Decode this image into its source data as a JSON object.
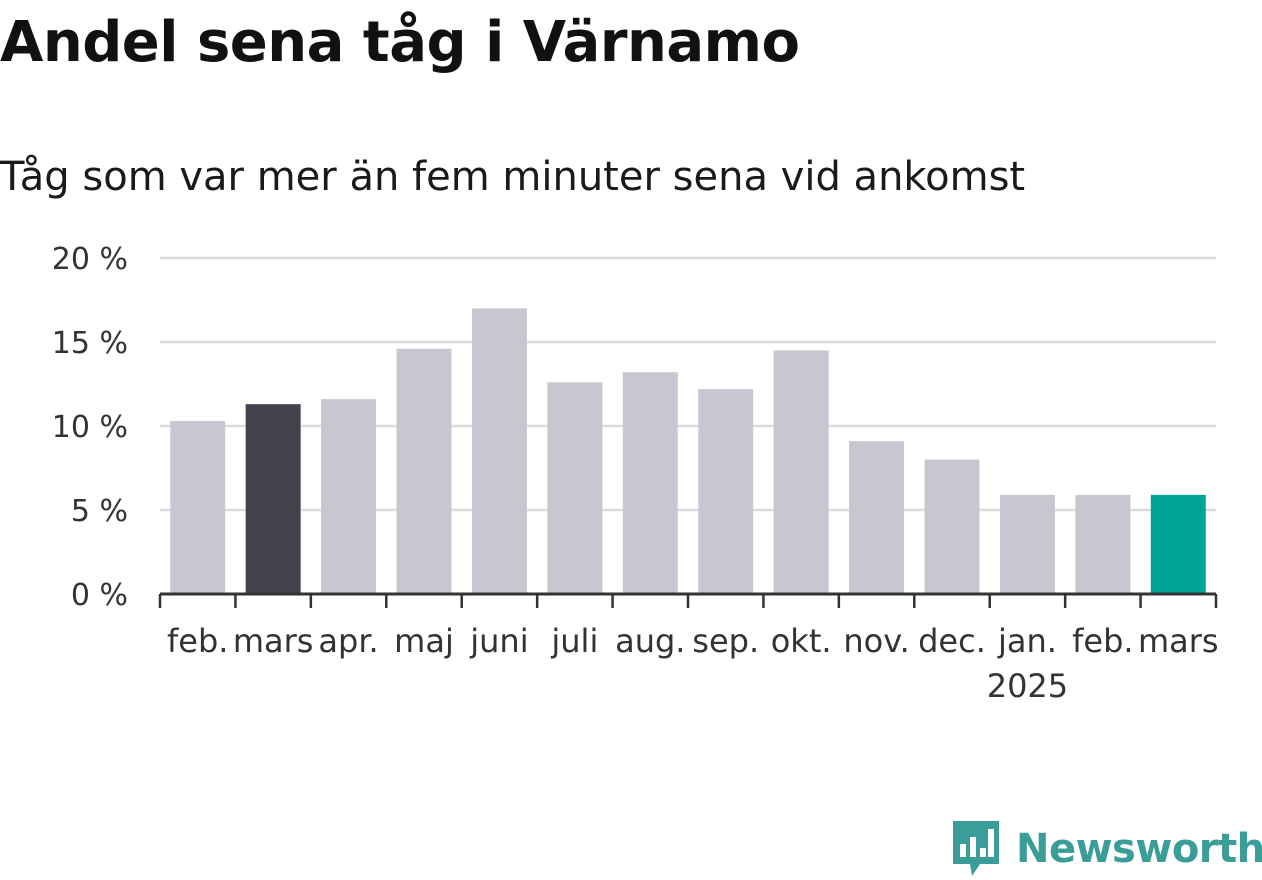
{
  "title": "Andel sena tåg i Värnamo",
  "subtitle": "Tåg som var mer än fem minuter sena vid ankomst",
  "brand": {
    "name": "Newsworthy",
    "color": "#3a9d97",
    "icon": "bar-chart-speech-bubble-icon"
  },
  "colors": {
    "default": "#c8c7d1",
    "previous_year": "#43414e",
    "current": "#00a398",
    "grid": "#dcdcdc",
    "axis": "#333333"
  },
  "chart_data": {
    "type": "bar",
    "title": "Andel sena tåg i Värnamo",
    "subtitle": "Tåg som var mer än fem minuter sena vid ankomst",
    "categories": [
      "feb.",
      "mars",
      "apr.",
      "maj",
      "juni",
      "juli",
      "aug.",
      "sep.",
      "okt.",
      "nov.",
      "dec.",
      "jan.",
      "feb.",
      "mars"
    ],
    "year_label": {
      "text": "2025",
      "under_category_index": 11
    },
    "values": [
      10.3,
      11.3,
      11.6,
      14.6,
      17.0,
      12.6,
      13.2,
      12.2,
      14.5,
      9.1,
      8.0,
      5.9,
      5.9,
      5.9
    ],
    "highlight": {
      "1": "previous_year",
      "13": "current"
    },
    "y_unit": "%",
    "ylim": [
      0,
      20
    ],
    "yticks": [
      0,
      5,
      10,
      15,
      20
    ],
    "ytick_labels": [
      "0 %",
      "5 %",
      "10 %",
      "15 %",
      "20 %"
    ],
    "grid": true
  }
}
